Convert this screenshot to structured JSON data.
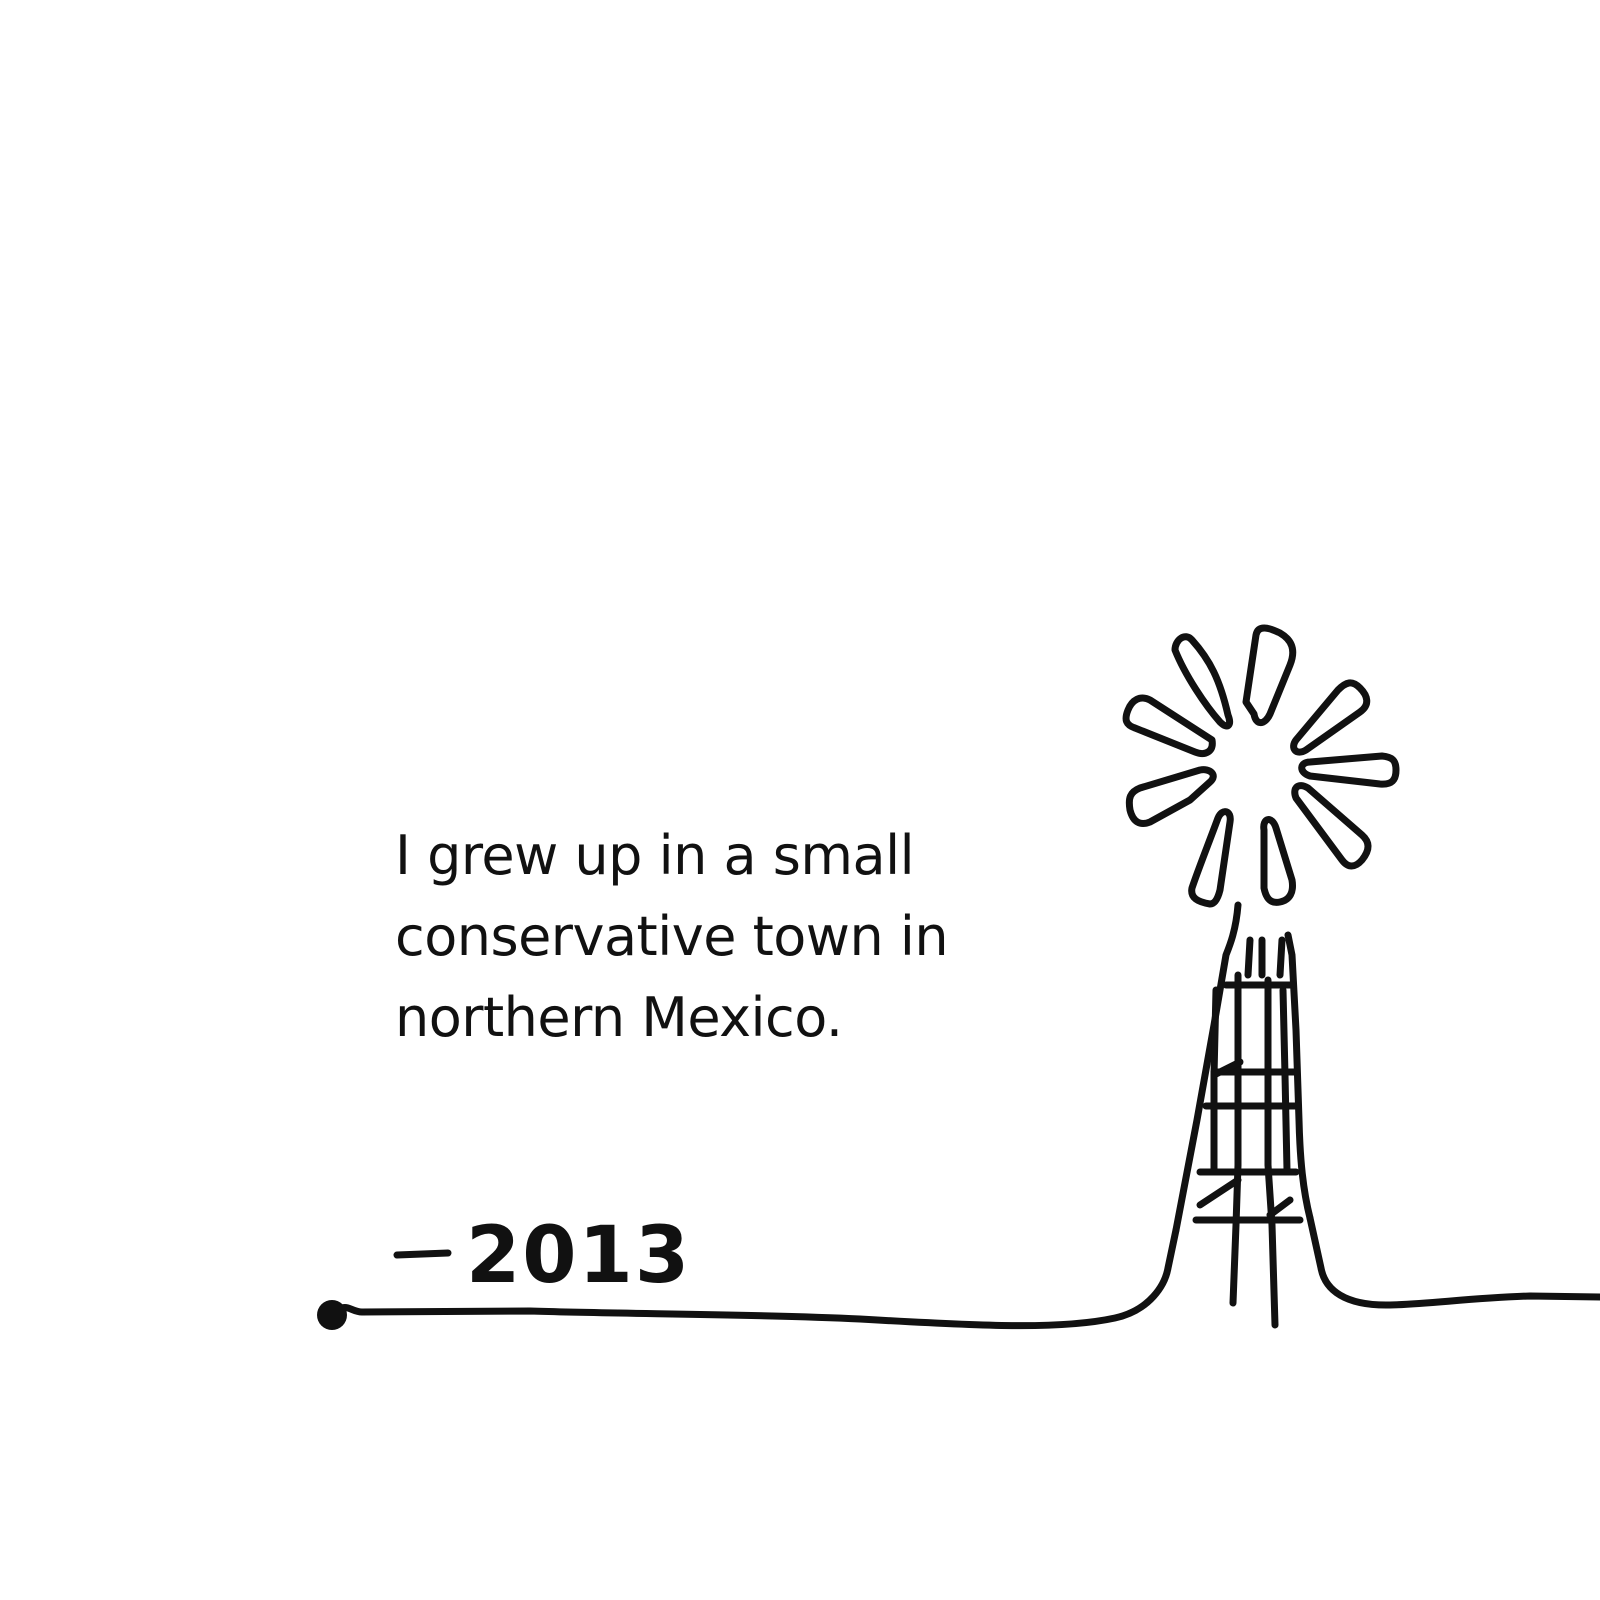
{
  "caption": {
    "lines": [
      "I grew up in a small",
      "conservative town in",
      "northern Mexico."
    ]
  },
  "year_label": "2013",
  "colors": {
    "ink": "#111111",
    "background": "#ffffff"
  },
  "icons": {
    "illustration": "windmill-icon",
    "timeline": "timeline-line"
  }
}
